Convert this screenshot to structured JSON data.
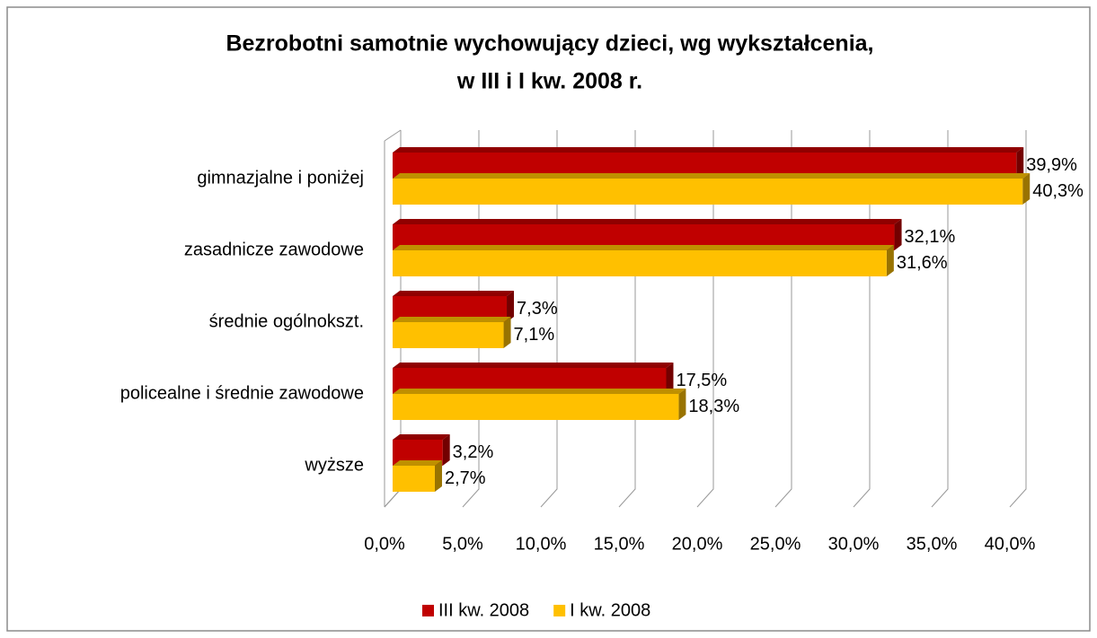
{
  "chart_data": {
    "type": "bar",
    "orientation": "horizontal",
    "title": [
      "Bezrobotni samotnie wychowujący dzieci, wg wykształcenia,",
      "w III i I kw. 2008 r."
    ],
    "categories": [
      "gimnazjalne i poniżej",
      "zasadnicze zawodowe",
      "średnie ogólnokszt.",
      "policealne i średnie zawodowe",
      "wyższe"
    ],
    "series": [
      {
        "name": "III kw. 2008",
        "color": "#c00000",
        "values": [
          39.9,
          32.1,
          7.3,
          17.5,
          3.2
        ],
        "value_labels": [
          "39,9%",
          "32,1%",
          "7,3%",
          "17,5%",
          "3,2%"
        ]
      },
      {
        "name": "I kw. 2008",
        "color": "#ffc000",
        "values": [
          40.3,
          31.6,
          7.1,
          18.3,
          2.7
        ],
        "value_labels": [
          "40,3%",
          "31,6%",
          "7,1%",
          "18,3%",
          "2,7%"
        ]
      }
    ],
    "xlim": [
      0,
      40
    ],
    "xticks": [
      {
        "value": 0,
        "label": "0,0%"
      },
      {
        "value": 5,
        "label": "5,0%"
      },
      {
        "value": 10,
        "label": "10,0%"
      },
      {
        "value": 15,
        "label": "15,0%"
      },
      {
        "value": 20,
        "label": "20,0%"
      },
      {
        "value": 25,
        "label": "25,0%"
      },
      {
        "value": 30,
        "label": "30,0%"
      },
      {
        "value": 35,
        "label": "35,0%"
      },
      {
        "value": 40,
        "label": "40,0%"
      }
    ],
    "grid": true,
    "legend": "bottom"
  }
}
